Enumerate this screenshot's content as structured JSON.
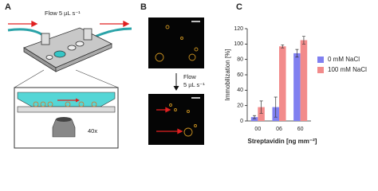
{
  "panels": {
    "a": {
      "label": "A",
      "flow": "Flow 5 µL s⁻¹",
      "objective": "40x"
    },
    "b": {
      "label": "B",
      "flow": "Flow",
      "rate": "5 µL s⁻¹"
    },
    "c": {
      "label": "C"
    }
  },
  "chart_data": {
    "type": "bar",
    "xlabel": "Streptavidin [ng mm⁻²]",
    "ylabel": "Immobilization [%]",
    "categories": [
      "00",
      "06",
      "60"
    ],
    "series": [
      {
        "name": "0 mM NaCl",
        "color": "#8080f0",
        "values": [
          5,
          18,
          88
        ],
        "errors": [
          2,
          13,
          5
        ]
      },
      {
        "name": "100 mM NaCl",
        "color": "#f28b8b",
        "values": [
          18,
          97,
          105
        ],
        "errors": [
          8,
          2,
          5
        ]
      }
    ],
    "ylim": [
      0,
      120
    ],
    "yticks": [
      0,
      20,
      40,
      60,
      80,
      100,
      120
    ],
    "legend": "right"
  }
}
